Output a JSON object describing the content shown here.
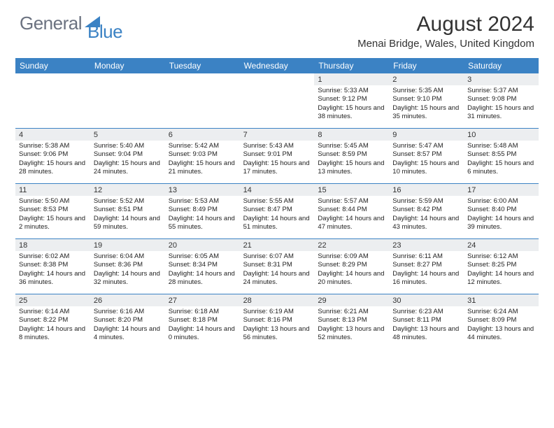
{
  "logo": {
    "part1": "General",
    "part2": "Blue"
  },
  "title": "August 2024",
  "location": "Menai Bridge, Wales, United Kingdom",
  "colors": {
    "header_bg": "#3b82c4",
    "header_text": "#ffffff",
    "daynum_bg": "#eceef0",
    "text": "#222222",
    "logo_gray": "#6b7280",
    "logo_blue": "#3b82c4",
    "row_divider": "#3b82c4"
  },
  "day_names": [
    "Sunday",
    "Monday",
    "Tuesday",
    "Wednesday",
    "Thursday",
    "Friday",
    "Saturday"
  ],
  "weeks": [
    [
      null,
      null,
      null,
      null,
      {
        "n": "1",
        "sr": "5:33 AM",
        "ss": "9:12 PM",
        "dl": "15 hours and 38 minutes."
      },
      {
        "n": "2",
        "sr": "5:35 AM",
        "ss": "9:10 PM",
        "dl": "15 hours and 35 minutes."
      },
      {
        "n": "3",
        "sr": "5:37 AM",
        "ss": "9:08 PM",
        "dl": "15 hours and 31 minutes."
      }
    ],
    [
      {
        "n": "4",
        "sr": "5:38 AM",
        "ss": "9:06 PM",
        "dl": "15 hours and 28 minutes."
      },
      {
        "n": "5",
        "sr": "5:40 AM",
        "ss": "9:04 PM",
        "dl": "15 hours and 24 minutes."
      },
      {
        "n": "6",
        "sr": "5:42 AM",
        "ss": "9:03 PM",
        "dl": "15 hours and 21 minutes."
      },
      {
        "n": "7",
        "sr": "5:43 AM",
        "ss": "9:01 PM",
        "dl": "15 hours and 17 minutes."
      },
      {
        "n": "8",
        "sr": "5:45 AM",
        "ss": "8:59 PM",
        "dl": "15 hours and 13 minutes."
      },
      {
        "n": "9",
        "sr": "5:47 AM",
        "ss": "8:57 PM",
        "dl": "15 hours and 10 minutes."
      },
      {
        "n": "10",
        "sr": "5:48 AM",
        "ss": "8:55 PM",
        "dl": "15 hours and 6 minutes."
      }
    ],
    [
      {
        "n": "11",
        "sr": "5:50 AM",
        "ss": "8:53 PM",
        "dl": "15 hours and 2 minutes."
      },
      {
        "n": "12",
        "sr": "5:52 AM",
        "ss": "8:51 PM",
        "dl": "14 hours and 59 minutes."
      },
      {
        "n": "13",
        "sr": "5:53 AM",
        "ss": "8:49 PM",
        "dl": "14 hours and 55 minutes."
      },
      {
        "n": "14",
        "sr": "5:55 AM",
        "ss": "8:47 PM",
        "dl": "14 hours and 51 minutes."
      },
      {
        "n": "15",
        "sr": "5:57 AM",
        "ss": "8:44 PM",
        "dl": "14 hours and 47 minutes."
      },
      {
        "n": "16",
        "sr": "5:59 AM",
        "ss": "8:42 PM",
        "dl": "14 hours and 43 minutes."
      },
      {
        "n": "17",
        "sr": "6:00 AM",
        "ss": "8:40 PM",
        "dl": "14 hours and 39 minutes."
      }
    ],
    [
      {
        "n": "18",
        "sr": "6:02 AM",
        "ss": "8:38 PM",
        "dl": "14 hours and 36 minutes."
      },
      {
        "n": "19",
        "sr": "6:04 AM",
        "ss": "8:36 PM",
        "dl": "14 hours and 32 minutes."
      },
      {
        "n": "20",
        "sr": "6:05 AM",
        "ss": "8:34 PM",
        "dl": "14 hours and 28 minutes."
      },
      {
        "n": "21",
        "sr": "6:07 AM",
        "ss": "8:31 PM",
        "dl": "14 hours and 24 minutes."
      },
      {
        "n": "22",
        "sr": "6:09 AM",
        "ss": "8:29 PM",
        "dl": "14 hours and 20 minutes."
      },
      {
        "n": "23",
        "sr": "6:11 AM",
        "ss": "8:27 PM",
        "dl": "14 hours and 16 minutes."
      },
      {
        "n": "24",
        "sr": "6:12 AM",
        "ss": "8:25 PM",
        "dl": "14 hours and 12 minutes."
      }
    ],
    [
      {
        "n": "25",
        "sr": "6:14 AM",
        "ss": "8:22 PM",
        "dl": "14 hours and 8 minutes."
      },
      {
        "n": "26",
        "sr": "6:16 AM",
        "ss": "8:20 PM",
        "dl": "14 hours and 4 minutes."
      },
      {
        "n": "27",
        "sr": "6:18 AM",
        "ss": "8:18 PM",
        "dl": "14 hours and 0 minutes."
      },
      {
        "n": "28",
        "sr": "6:19 AM",
        "ss": "8:16 PM",
        "dl": "13 hours and 56 minutes."
      },
      {
        "n": "29",
        "sr": "6:21 AM",
        "ss": "8:13 PM",
        "dl": "13 hours and 52 minutes."
      },
      {
        "n": "30",
        "sr": "6:23 AM",
        "ss": "8:11 PM",
        "dl": "13 hours and 48 minutes."
      },
      {
        "n": "31",
        "sr": "6:24 AM",
        "ss": "8:09 PM",
        "dl": "13 hours and 44 minutes."
      }
    ]
  ],
  "labels": {
    "sunrise": "Sunrise:",
    "sunset": "Sunset:",
    "daylight": "Daylight:"
  }
}
